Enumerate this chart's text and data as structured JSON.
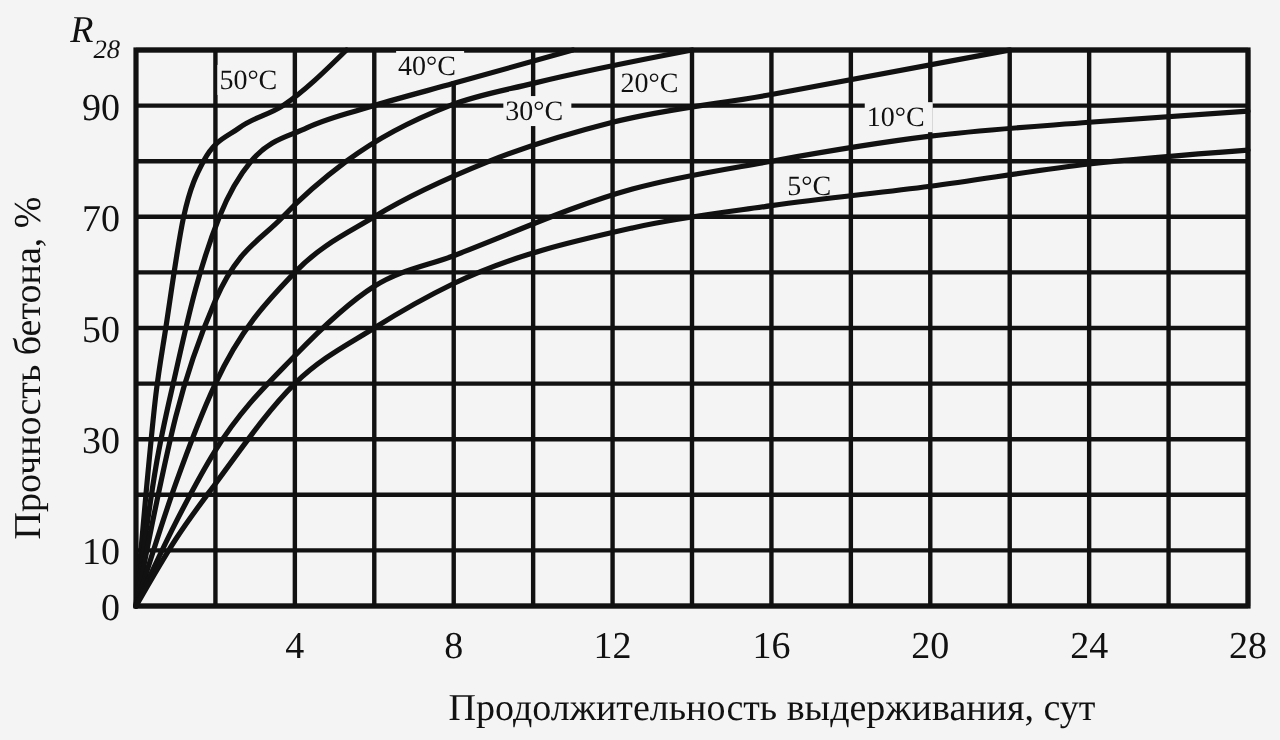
{
  "chart_data": {
    "type": "line",
    "xlabel": "Продолжительность выдерживания, сут",
    "ylabel": "Прочность бетона, %",
    "annotations": [
      "R$_{28}$"
    ],
    "xlim": [
      0,
      28
    ],
    "ylim": [
      0,
      100
    ],
    "xticks": [
      {
        "value": 2,
        "label": null
      },
      4,
      {
        "value": 6,
        "label": null
      },
      8,
      {
        "value": 10,
        "label": null
      },
      12,
      {
        "value": 14,
        "label": null
      },
      16,
      {
        "value": 18,
        "label": null
      },
      20,
      {
        "value": 22,
        "label": null
      },
      24,
      {
        "value": 26,
        "label": null
      },
      28
    ],
    "yticks": [
      0,
      10,
      {
        "value": 20,
        "label": null
      },
      30,
      {
        "value": 40,
        "label": null
      },
      50,
      {
        "value": 60,
        "label": null
      },
      70,
      {
        "value": 80,
        "label": null
      },
      90,
      {
        "value": 100,
        "label": null
      }
    ],
    "grid": true,
    "marker": "none",
    "line_style": "solid",
    "series": [
      {
        "name": "50°C",
        "color": "#111111",
        "x": [
          0,
          0.25,
          0.5,
          0.75,
          1.2,
          1.7,
          2.6,
          3.7,
          5.3
        ],
        "values": [
          0,
          20,
          38,
          50,
          70,
          80,
          86,
          90,
          100
        ]
      },
      {
        "name": "40°C",
        "color": "#111111",
        "x": [
          0,
          0.5,
          1,
          1.5,
          2.1,
          2.9,
          4.3,
          6,
          8,
          11
        ],
        "values": [
          0,
          25,
          42,
          57,
          70,
          80,
          86,
          90,
          94,
          100
        ]
      },
      {
        "name": "30°C",
        "color": "#111111",
        "x": [
          0,
          0.5,
          1,
          2,
          3.7,
          5.3,
          7.9,
          10,
          14
        ],
        "values": [
          0,
          18,
          34,
          55,
          70,
          80,
          90,
          94,
          100
        ]
      },
      {
        "name": "20°C",
        "color": "#111111",
        "x": [
          0,
          1,
          2,
          4,
          6,
          8.9,
          12,
          16,
          22
        ],
        "values": [
          0,
          22,
          40,
          60,
          70,
          80,
          87,
          92,
          100
        ]
      },
      {
        "name": "10°C",
        "color": "#111111",
        "x": [
          0,
          1,
          2,
          4,
          6,
          8,
          12.5,
          16,
          20,
          24,
          28
        ],
        "values": [
          0,
          15,
          28,
          45,
          57.5,
          63,
          75,
          80,
          84.5,
          87,
          89
        ]
      },
      {
        "name": "5°C",
        "color": "#111111",
        "x": [
          0,
          1,
          2,
          4,
          6,
          8,
          12.5,
          16,
          20,
          24,
          28
        ],
        "values": [
          0,
          12,
          22,
          40,
          50,
          58,
          68,
          72,
          75.5,
          79.5,
          82
        ]
      }
    ]
  }
}
